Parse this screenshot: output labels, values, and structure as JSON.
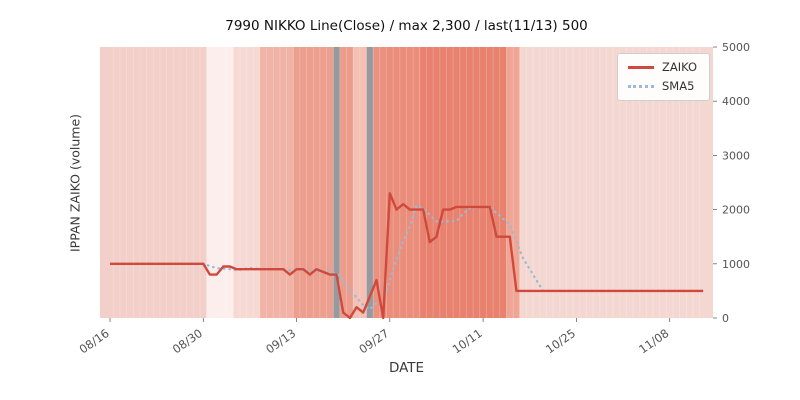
{
  "chart_data": {
    "type": "line",
    "title": "7990 NIKKO Line(Close) / max 2,300 / last(11/13) 500",
    "xlabel": "DATE",
    "ylabel": "IPPAN ZAIKO (volume)",
    "ylim": [
      0,
      5000
    ],
    "yticks": [
      0,
      1000,
      2000,
      3000,
      4000,
      5000
    ],
    "xticks": [
      "08/16",
      "08/30",
      "09/13",
      "09/27",
      "10/11",
      "10/25",
      "11/08"
    ],
    "legend_position": "upper right",
    "plot_bg": "#f9e9e6",
    "dates": [
      "08/16",
      "08/17",
      "08/18",
      "08/19",
      "08/20",
      "08/21",
      "08/22",
      "08/23",
      "08/24",
      "08/25",
      "08/26",
      "08/27",
      "08/28",
      "08/29",
      "08/30",
      "08/31",
      "09/01",
      "09/02",
      "09/03",
      "09/04",
      "09/05",
      "09/06",
      "09/07",
      "09/08",
      "09/09",
      "09/10",
      "09/11",
      "09/12",
      "09/13",
      "09/14",
      "09/15",
      "09/16",
      "09/17",
      "09/18",
      "09/19",
      "09/20",
      "09/21",
      "09/22",
      "09/23",
      "09/24",
      "09/25",
      "09/26",
      "09/27",
      "09/28",
      "09/29",
      "09/30",
      "10/01",
      "10/02",
      "10/03",
      "10/04",
      "10/05",
      "10/06",
      "10/07",
      "10/08",
      "10/09",
      "10/10",
      "10/11",
      "10/12",
      "10/13",
      "10/14",
      "10/15",
      "10/16",
      "10/17",
      "10/18",
      "10/19",
      "10/20",
      "10/21",
      "10/22",
      "10/23",
      "10/24",
      "10/25",
      "10/26",
      "10/27",
      "10/28",
      "10/29",
      "10/30",
      "10/31",
      "11/01",
      "11/02",
      "11/03",
      "11/04",
      "11/05",
      "11/06",
      "11/07",
      "11/08",
      "11/09",
      "11/10",
      "11/11",
      "11/12",
      "11/13"
    ],
    "series": [
      {
        "name": "ZAIKO",
        "color": "#cf4a3d",
        "style": "solid",
        "values": [
          1000,
          1000,
          1000,
          1000,
          1000,
          1000,
          1000,
          1000,
          1000,
          1000,
          1000,
          1000,
          1000,
          1000,
          1000,
          800,
          800,
          950,
          950,
          900,
          900,
          900,
          900,
          900,
          900,
          900,
          900,
          800,
          900,
          900,
          800,
          900,
          850,
          800,
          800,
          100,
          0,
          200,
          100,
          400,
          700,
          0,
          2300,
          2000,
          2100,
          2000,
          2000,
          2000,
          1400,
          1500,
          2000,
          2000,
          2050,
          2050,
          2050,
          2050,
          2050,
          2050,
          1500,
          1500,
          1500,
          500,
          500,
          500,
          500,
          500,
          500,
          500,
          500,
          500,
          500,
          500,
          500,
          500,
          500,
          500,
          500,
          500,
          500,
          500,
          500,
          500,
          500,
          500,
          500,
          500,
          500,
          500,
          500,
          500
        ]
      },
      {
        "name": "SMA5",
        "color": "#9cb9d7",
        "style": "dotted",
        "derived": "5-day simple moving average of ZAIKO"
      }
    ],
    "max_value": 2300,
    "last_date": "11/13",
    "last_value": 500,
    "bands": [
      {
        "from": "08/16",
        "to": "08/30",
        "color": "#f3cfc9"
      },
      {
        "from": "08/31",
        "to": "09/03",
        "color": "#fbeeec"
      },
      {
        "from": "09/04",
        "to": "09/07",
        "color": "#f7d9d3"
      },
      {
        "from": "09/08",
        "to": "09/12",
        "color": "#f0b3a5"
      },
      {
        "from": "09/13",
        "to": "09/18",
        "color": "#ec9f8e"
      },
      {
        "from": "09/19",
        "to": "09/19",
        "color": "#969a9f"
      },
      {
        "from": "09/20",
        "to": "09/21",
        "color": "#ec9c8b"
      },
      {
        "from": "09/22",
        "to": "09/23",
        "color": "#f3c0b3"
      },
      {
        "from": "09/24",
        "to": "09/24",
        "color": "#969a9f"
      },
      {
        "from": "09/25",
        "to": "09/25",
        "color": "#ea9180"
      },
      {
        "from": "09/26",
        "to": "09/26",
        "color": "#ea9180"
      },
      {
        "from": "09/27",
        "to": "10/01",
        "color": "#ea8d7b"
      },
      {
        "from": "10/02",
        "to": "10/14",
        "color": "#e8826e"
      },
      {
        "from": "10/15",
        "to": "10/16",
        "color": "#efa695"
      },
      {
        "from": "10/17",
        "to": "11/13",
        "color": "#f5d7d1"
      }
    ]
  }
}
